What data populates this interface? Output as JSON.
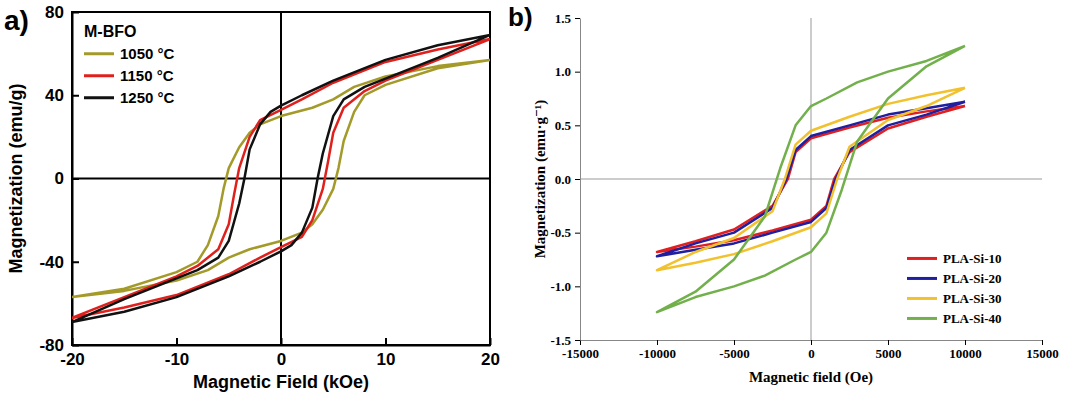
{
  "chart_data": [
    {
      "type": "line",
      "title": "a)",
      "legend_title": "M-BFO",
      "x_label": "Magnetic Field (kOe)",
      "y_label": "Magnetization (emu/g)",
      "xlim": [
        -20,
        20
      ],
      "xticks": [
        -20,
        -10,
        0,
        10,
        20
      ],
      "ylim": [
        -80,
        80
      ],
      "yticks": [
        -80,
        -40,
        0,
        40,
        80
      ],
      "legend": "top-left",
      "series": [
        {
          "name": "1050 °C",
          "color": "#a39a2a",
          "x": [
            20,
            15,
            10,
            7,
            5,
            3,
            0,
            -2,
            -3,
            -4,
            -5,
            -5.5,
            -6,
            -7,
            -8,
            -10,
            -15,
            -20,
            -15,
            -10,
            -7,
            -5,
            -3,
            0,
            2,
            3,
            4,
            5,
            5.5,
            6,
            7,
            8,
            10,
            15,
            20
          ],
          "values": [
            57,
            54,
            49,
            44,
            38,
            34,
            30,
            26,
            22,
            15,
            5,
            -5,
            -18,
            -32,
            -40,
            -45,
            -53,
            -57,
            -54,
            -49,
            -44,
            -38,
            -34,
            -30,
            -26,
            -22,
            -15,
            -5,
            5,
            18,
            32,
            40,
            45,
            53,
            57
          ]
        },
        {
          "name": "1150 °C",
          "color": "#e0201c",
          "x": [
            20,
            15,
            10,
            5,
            2,
            0,
            -2,
            -3,
            -4,
            -4.5,
            -5,
            -6,
            -8,
            -10,
            -15,
            -20,
            -15,
            -10,
            -5,
            -2,
            0,
            2,
            3,
            4,
            4.5,
            5,
            6,
            8,
            10,
            15,
            20
          ],
          "values": [
            67,
            62,
            56,
            46,
            38,
            33,
            28,
            20,
            5,
            -8,
            -22,
            -34,
            -42,
            -47,
            -57,
            -67,
            -62,
            -56,
            -46,
            -38,
            -33,
            -28,
            -20,
            -5,
            8,
            22,
            34,
            42,
            47,
            57,
            67
          ]
        },
        {
          "name": "1250 °C",
          "color": "#111111",
          "x": [
            20,
            15,
            10,
            5,
            2,
            0,
            -1,
            -2,
            -3,
            -3.5,
            -4,
            -5,
            -6,
            -8,
            -10,
            -15,
            -20,
            -15,
            -10,
            -5,
            -2,
            0,
            1,
            2,
            3,
            3.5,
            4,
            5,
            6,
            8,
            10,
            15,
            20
          ],
          "values": [
            69,
            64,
            57,
            47,
            40,
            35,
            32,
            26,
            14,
            0,
            -12,
            -30,
            -38,
            -44,
            -48,
            -58,
            -69,
            -64,
            -57,
            -47,
            -40,
            -35,
            -32,
            -26,
            -14,
            0,
            12,
            30,
            38,
            44,
            48,
            58,
            69
          ]
        }
      ]
    },
    {
      "type": "line",
      "title": "b)",
      "x_label": "Magnetic field (Oe)",
      "y_label": "Magnetization (emu·g⁻¹)",
      "xlim": [
        -15000,
        15000
      ],
      "xticks": [
        -15000,
        -10000,
        -5000,
        0,
        5000,
        10000,
        15000
      ],
      "ylim": [
        -1.5,
        1.5
      ],
      "yticks": [
        -1.5,
        {
          "value": -1,
          "label": "-1.0"
        },
        -0.5,
        {
          "value": 0,
          "label": "0.0"
        },
        0.5,
        {
          "value": 1,
          "label": "1.0"
        },
        1.5
      ],
      "legend": "bottom-right",
      "series": [
        {
          "name": "PLA-Si-10",
          "color": "#e02020",
          "x": [
            10000,
            7500,
            5000,
            2500,
            0,
            -1000,
            -1500,
            -2500,
            -5000,
            -7500,
            -10000,
            -7500,
            -5000,
            -2500,
            0,
            1000,
            1500,
            2500,
            5000,
            7500,
            10000
          ],
          "values": [
            0.68,
            0.63,
            0.57,
            0.48,
            0.38,
            0.25,
            0,
            -0.25,
            -0.47,
            -0.58,
            -0.68,
            -0.63,
            -0.57,
            -0.48,
            -0.38,
            -0.25,
            0,
            0.25,
            0.47,
            0.58,
            0.68
          ]
        },
        {
          "name": "PLA-Si-20",
          "color": "#1f1f9f",
          "x": [
            10000,
            7500,
            5000,
            2500,
            0,
            -1000,
            -1600,
            -2500,
            -5000,
            -7500,
            -10000,
            -7500,
            -5000,
            -2500,
            0,
            1000,
            1600,
            2500,
            5000,
            7500,
            10000
          ],
          "values": [
            0.72,
            0.66,
            0.6,
            0.5,
            0.4,
            0.27,
            0,
            -0.27,
            -0.5,
            -0.6,
            -0.72,
            -0.66,
            -0.6,
            -0.5,
            -0.4,
            -0.27,
            0,
            0.27,
            0.5,
            0.6,
            0.72
          ]
        },
        {
          "name": "PLA-Si-30",
          "color": "#f2c12e",
          "x": [
            10000,
            7500,
            5000,
            2500,
            0,
            -1000,
            -1700,
            -2500,
            -5000,
            -7500,
            -10000,
            -7500,
            -5000,
            -2500,
            0,
            1000,
            1700,
            2500,
            5000,
            7500,
            10000
          ],
          "values": [
            0.85,
            0.78,
            0.7,
            0.58,
            0.45,
            0.32,
            0,
            -0.3,
            -0.55,
            -0.68,
            -0.85,
            -0.78,
            -0.7,
            -0.58,
            -0.45,
            -0.32,
            0,
            0.3,
            0.55,
            0.68,
            0.85
          ]
        },
        {
          "name": "PLA-Si-40",
          "color": "#72b04c",
          "x": [
            10000,
            7500,
            5000,
            3000,
            1000,
            0,
            -1000,
            -2000,
            -3000,
            -5000,
            -7500,
            -10000,
            -7500,
            -5000,
            -3000,
            -1000,
            0,
            1000,
            2000,
            3000,
            5000,
            7500,
            10000
          ],
          "values": [
            1.24,
            1.1,
            1.0,
            0.9,
            0.75,
            0.68,
            0.5,
            0.1,
            -0.35,
            -0.75,
            -1.05,
            -1.24,
            -1.1,
            -1.0,
            -0.9,
            -0.75,
            -0.68,
            -0.5,
            -0.1,
            0.35,
            0.75,
            1.05,
            1.24
          ]
        }
      ]
    }
  ]
}
